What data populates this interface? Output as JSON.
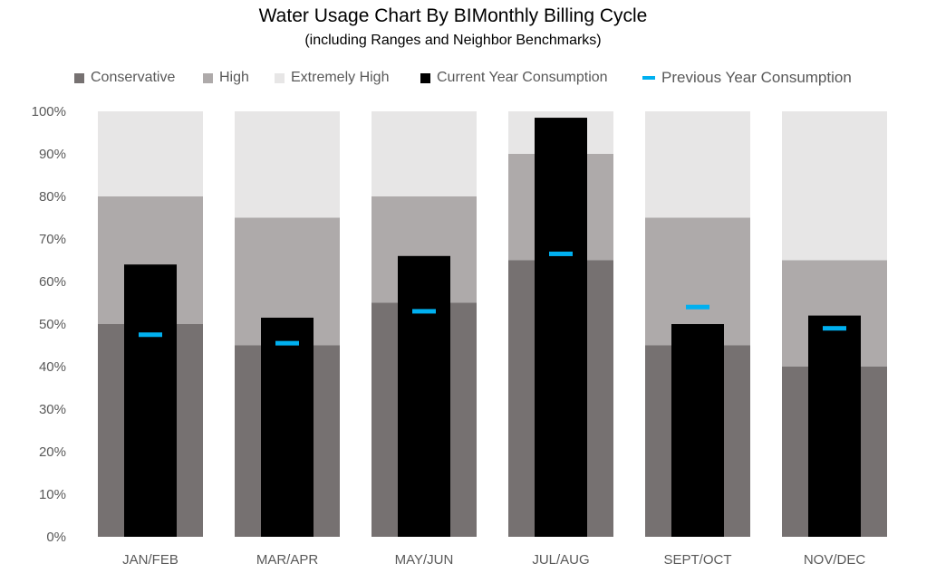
{
  "chart_data": {
    "type": "bar",
    "title": "Water Usage Chart By BIMonthly Billing Cycle",
    "subtitle": "(including Ranges and Neighbor Benchmarks)",
    "categories": [
      "JAN/FEB",
      "MAR/APR",
      "MAY/JUN",
      "JUL/AUG",
      "SEPT/OCT",
      "NOV/DEC"
    ],
    "series": [
      {
        "name": "Conservative",
        "color": "#767171",
        "values": [
          50,
          45,
          55,
          65,
          45,
          40
        ]
      },
      {
        "name": "High",
        "color": "#aeaaaa",
        "values": [
          80,
          75,
          80,
          90,
          75,
          65
        ]
      },
      {
        "name": "Extremely High",
        "color": "#e7e6e6",
        "values": [
          100,
          100,
          100,
          100,
          100,
          100
        ]
      },
      {
        "name": "Current Year Consumption",
        "color": "#000000",
        "values": [
          64,
          51.5,
          66,
          98.5,
          50,
          52
        ]
      },
      {
        "name": "Previous Year Consumption",
        "color": "#00b0f0",
        "values": [
          47.5,
          45.5,
          53,
          66.5,
          54,
          49
        ]
      }
    ],
    "ylim": [
      0,
      100
    ],
    "yticks": [
      "0%",
      "10%",
      "20%",
      "30%",
      "40%",
      "50%",
      "60%",
      "70%",
      "80%",
      "90%",
      "100%"
    ],
    "xlabel": "",
    "ylabel": "",
    "legend_position": "top",
    "grid": false
  }
}
